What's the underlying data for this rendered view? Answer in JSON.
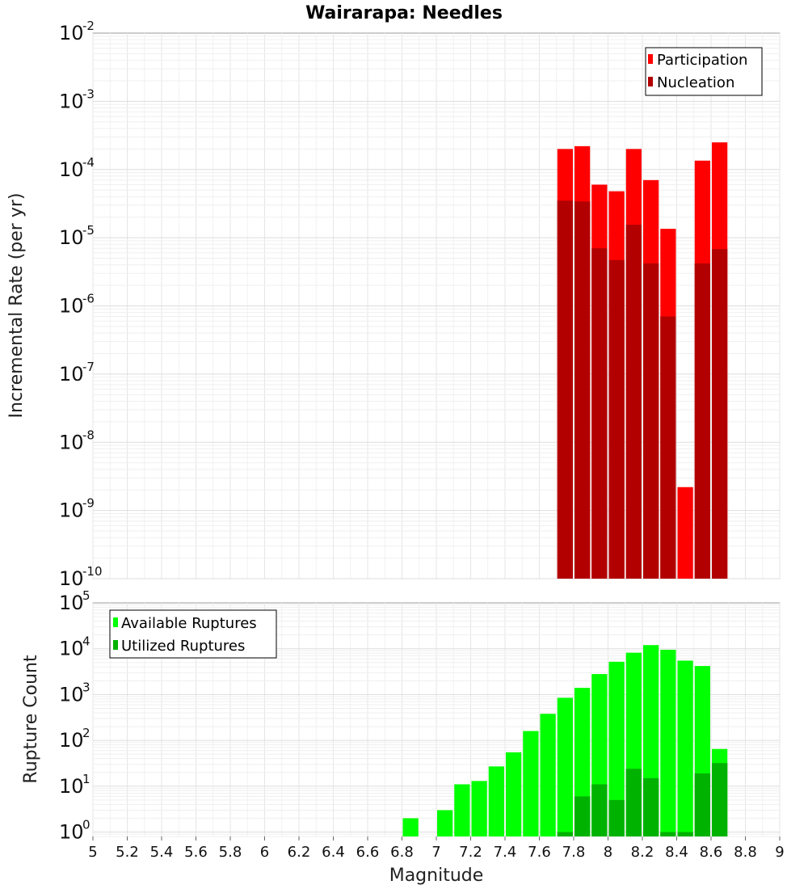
{
  "chart_data": [
    {
      "type": "bar",
      "title": "Wairarapa: Needles",
      "xlabel": "",
      "ylabel": "Incremental Rate (per yr)",
      "yscale": "log",
      "ylim": [
        1e-10,
        0.01
      ],
      "y_ticks": [
        {
          "base": "10",
          "exp": "-10"
        },
        {
          "base": "10",
          "exp": "-9"
        },
        {
          "base": "10",
          "exp": "-8"
        },
        {
          "base": "10",
          "exp": "-7"
        },
        {
          "base": "10",
          "exp": "-6"
        },
        {
          "base": "10",
          "exp": "-5"
        },
        {
          "base": "10",
          "exp": "-4"
        },
        {
          "base": "10",
          "exp": "-3"
        },
        {
          "base": "10",
          "exp": "-2"
        }
      ],
      "xlim": [
        5,
        9
      ],
      "grid": true,
      "legend_position": "top-right",
      "bin_width": 0.1,
      "x": [
        7.75,
        7.85,
        7.95,
        8.05,
        8.15,
        8.25,
        8.35,
        8.45,
        8.55,
        8.65
      ],
      "series": [
        {
          "name": "Participation",
          "color": "#ff0000",
          "values": [
            0.0002,
            0.00022,
            6e-05,
            4.8e-05,
            0.0002,
            7e-05,
            1.35e-05,
            2.2e-09,
            0.000135,
            0.00025
          ]
        },
        {
          "name": "Nucleation",
          "color": "#b20000",
          "values": [
            3.5e-05,
            3.4e-05,
            7e-06,
            4.7e-06,
            1.55e-05,
            4.2e-06,
            7e-07,
            null,
            4.2e-06,
            6.8e-06
          ]
        }
      ]
    },
    {
      "type": "bar",
      "xlabel": "Magnitude",
      "ylabel": "Rupture Count",
      "yscale": "log",
      "ylim": [
        0.8,
        100000.0
      ],
      "y_ticks": [
        {
          "base": "10",
          "exp": "0"
        },
        {
          "base": "10",
          "exp": "1"
        },
        {
          "base": "10",
          "exp": "2"
        },
        {
          "base": "10",
          "exp": "3"
        },
        {
          "base": "10",
          "exp": "4"
        },
        {
          "base": "10",
          "exp": "5"
        }
      ],
      "xlim": [
        5,
        9
      ],
      "x_ticks": [
        "5",
        "5.2",
        "5.4",
        "5.6",
        "5.8",
        "6",
        "6.2",
        "6.4",
        "6.6",
        "6.8",
        "7",
        "7.2",
        "7.4",
        "7.6",
        "7.8",
        "8",
        "8.2",
        "8.4",
        "8.6",
        "8.8",
        "9"
      ],
      "grid": true,
      "legend_position": "top-left",
      "bin_width": 0.1,
      "x": [
        6.85,
        7.05,
        7.15,
        7.25,
        7.35,
        7.45,
        7.55,
        7.65,
        7.75,
        7.85,
        7.95,
        8.05,
        8.15,
        8.25,
        8.35,
        8.45,
        8.55,
        8.65
      ],
      "series": [
        {
          "name": "Available Ruptures",
          "color": "#00ff00",
          "values": [
            2,
            3,
            11,
            13,
            27,
            55,
            160,
            380,
            850,
            1400,
            2800,
            5200,
            8200,
            12000,
            9500,
            5500,
            4200,
            65
          ]
        },
        {
          "name": "Utilized Ruptures",
          "color": "#00b200",
          "values": [
            null,
            null,
            null,
            null,
            null,
            null,
            null,
            null,
            1,
            6,
            11,
            5,
            24,
            15,
            1,
            1,
            19,
            32
          ]
        }
      ]
    }
  ]
}
